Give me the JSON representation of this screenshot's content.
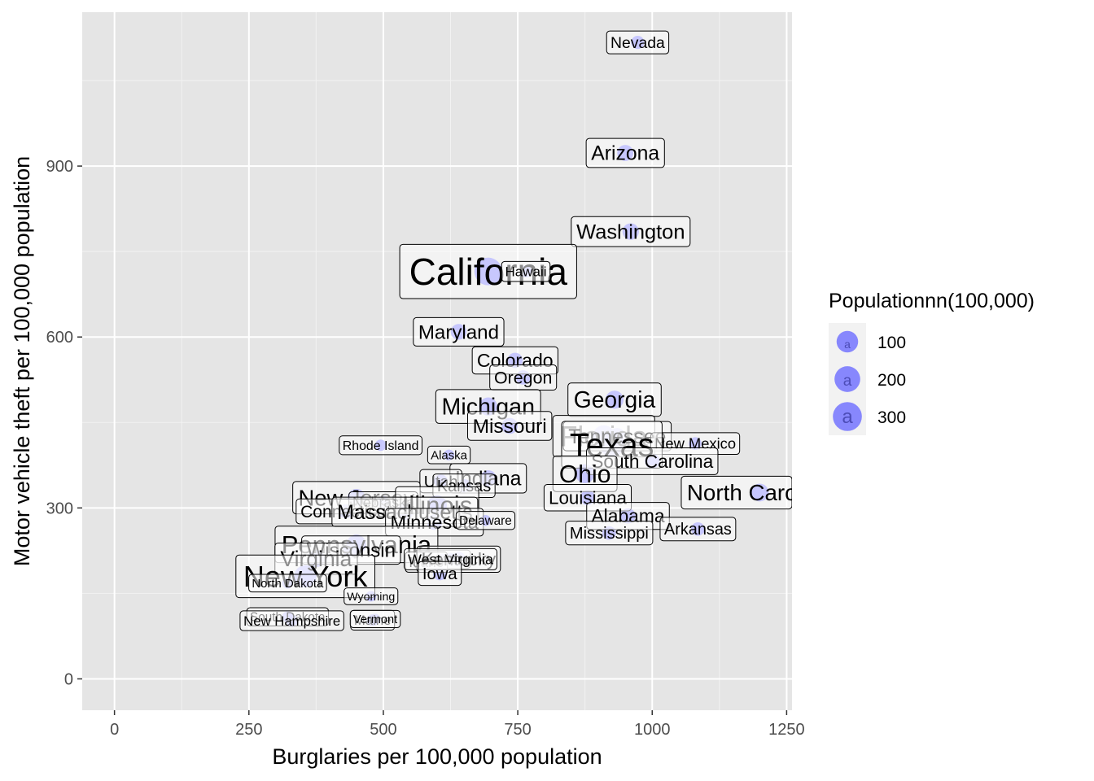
{
  "chart_data": {
    "type": "scatter",
    "title": "",
    "xlabel": "Burglaries per 100,000 population",
    "ylabel": "Motor vehicle theft per 100,000 population",
    "xlim": [
      -60,
      1260
    ],
    "ylim": [
      -55,
      1170
    ],
    "x_ticks": [
      0,
      250,
      500,
      750,
      1000,
      1250
    ],
    "y_ticks": [
      0,
      300,
      600,
      900
    ],
    "x_tick_labels": [
      "0",
      "250",
      "500",
      "750",
      "1000",
      "1250"
    ],
    "y_tick_labels": [
      "0",
      "300",
      "600",
      "900"
    ],
    "grid": true,
    "point_color": "#6b6bff",
    "panel_color": "#e5e5e5",
    "legend": {
      "title": "Populationnn(100,000)",
      "placement": "right",
      "glyph": "a",
      "entries": [
        {
          "label": "100",
          "value": 100
        },
        {
          "label": "200",
          "value": 200
        },
        {
          "label": "300",
          "value": 300
        }
      ]
    },
    "points": [
      {
        "label": "Nevada",
        "x": 973,
        "y": 1117,
        "size": 25
      },
      {
        "label": "Arizona",
        "x": 950,
        "y": 923,
        "size": 62
      },
      {
        "label": "Washington",
        "x": 960,
        "y": 785,
        "size": 68
      },
      {
        "label": "California",
        "x": 695,
        "y": 715,
        "size": 370
      },
      {
        "label": "Hawaii",
        "x": 765,
        "y": 715,
        "size": 14
      },
      {
        "label": "Maryland",
        "x": 640,
        "y": 609,
        "size": 57
      },
      {
        "label": "Colorado",
        "x": 745,
        "y": 559,
        "size": 49
      },
      {
        "label": "Oregon",
        "x": 760,
        "y": 529,
        "size": 37
      },
      {
        "label": "Georgia",
        "x": 930,
        "y": 490,
        "size": 95
      },
      {
        "label": "Michigan",
        "x": 695,
        "y": 478,
        "size": 99
      },
      {
        "label": "Missouri",
        "x": 735,
        "y": 444,
        "size": 60
      },
      {
        "label": "Florida",
        "x": 910,
        "y": 426,
        "size": 181
      },
      {
        "label": "Tennessee",
        "x": 935,
        "y": 426,
        "size": 63
      },
      {
        "label": "New Mexico",
        "x": 1080,
        "y": 413,
        "size": 20
      },
      {
        "label": "Texas",
        "x": 925,
        "y": 411,
        "size": 251
      },
      {
        "label": "South Carolina",
        "x": 1000,
        "y": 382,
        "size": 46
      },
      {
        "label": "Rhode Island",
        "x": 495,
        "y": 410,
        "size": 10
      },
      {
        "label": "Alaska",
        "x": 622,
        "y": 393,
        "size": 7
      },
      {
        "label": "Indiana",
        "x": 695,
        "y": 352,
        "size": 63
      },
      {
        "label": "Utah",
        "x": 607,
        "y": 347,
        "size": 27
      },
      {
        "label": "Kansas",
        "x": 650,
        "y": 339,
        "size": 28
      },
      {
        "label": "Ohio",
        "x": 875,
        "y": 360,
        "size": 116
      },
      {
        "label": "Louisiana",
        "x": 880,
        "y": 318,
        "size": 44
      },
      {
        "label": "North Carolina",
        "x": 1200,
        "y": 327,
        "size": 90
      },
      {
        "label": "New Jersey",
        "x": 450,
        "y": 318,
        "size": 86
      },
      {
        "label": "Nebraska",
        "x": 500,
        "y": 310,
        "size": 17
      },
      {
        "label": "Illinois",
        "x": 600,
        "y": 305,
        "size": 128
      },
      {
        "label": "Connecticut",
        "x": 430,
        "y": 294,
        "size": 35
      },
      {
        "label": "Massachusetts",
        "x": 540,
        "y": 293,
        "size": 64
      },
      {
        "label": "Minnesota",
        "x": 595,
        "y": 275,
        "size": 52
      },
      {
        "label": "Delaware",
        "x": 690,
        "y": 278,
        "size": 8
      },
      {
        "label": "Alabama",
        "x": 955,
        "y": 286,
        "size": 47
      },
      {
        "label": "Arkansas",
        "x": 1085,
        "y": 263,
        "size": 28
      },
      {
        "label": "Mississippi",
        "x": 920,
        "y": 256,
        "size": 29
      },
      {
        "label": "Pennsylvania",
        "x": 450,
        "y": 236,
        "size": 126
      },
      {
        "label": "Wisconsin",
        "x": 440,
        "y": 226,
        "size": 56
      },
      {
        "label": "Virginia",
        "x": 375,
        "y": 211,
        "size": 78
      },
      {
        "label": "Montana",
        "x": 610,
        "y": 210,
        "size": 9
      },
      {
        "label": "Idaho",
        "x": 580,
        "y": 205,
        "size": 15
      },
      {
        "label": "Kentucky",
        "x": 640,
        "y": 210,
        "size": 43
      },
      {
        "label": "West Virginia",
        "x": 625,
        "y": 210,
        "size": 18
      },
      {
        "label": "Iowa",
        "x": 605,
        "y": 185,
        "size": 30
      },
      {
        "label": "New York",
        "x": 355,
        "y": 180,
        "size": 195
      },
      {
        "label": "North Dakota",
        "x": 322,
        "y": 168,
        "size": 7
      },
      {
        "label": "Wyoming",
        "x": 477,
        "y": 145,
        "size": 5
      },
      {
        "label": "South Dakota",
        "x": 322,
        "y": 109,
        "size": 8
      },
      {
        "label": "New Hampshire",
        "x": 330,
        "y": 102,
        "size": 13
      },
      {
        "label": "Maine",
        "x": 480,
        "y": 103,
        "size": 13
      },
      {
        "label": "Vermont",
        "x": 485,
        "y": 105,
        "size": 6
      }
    ]
  }
}
